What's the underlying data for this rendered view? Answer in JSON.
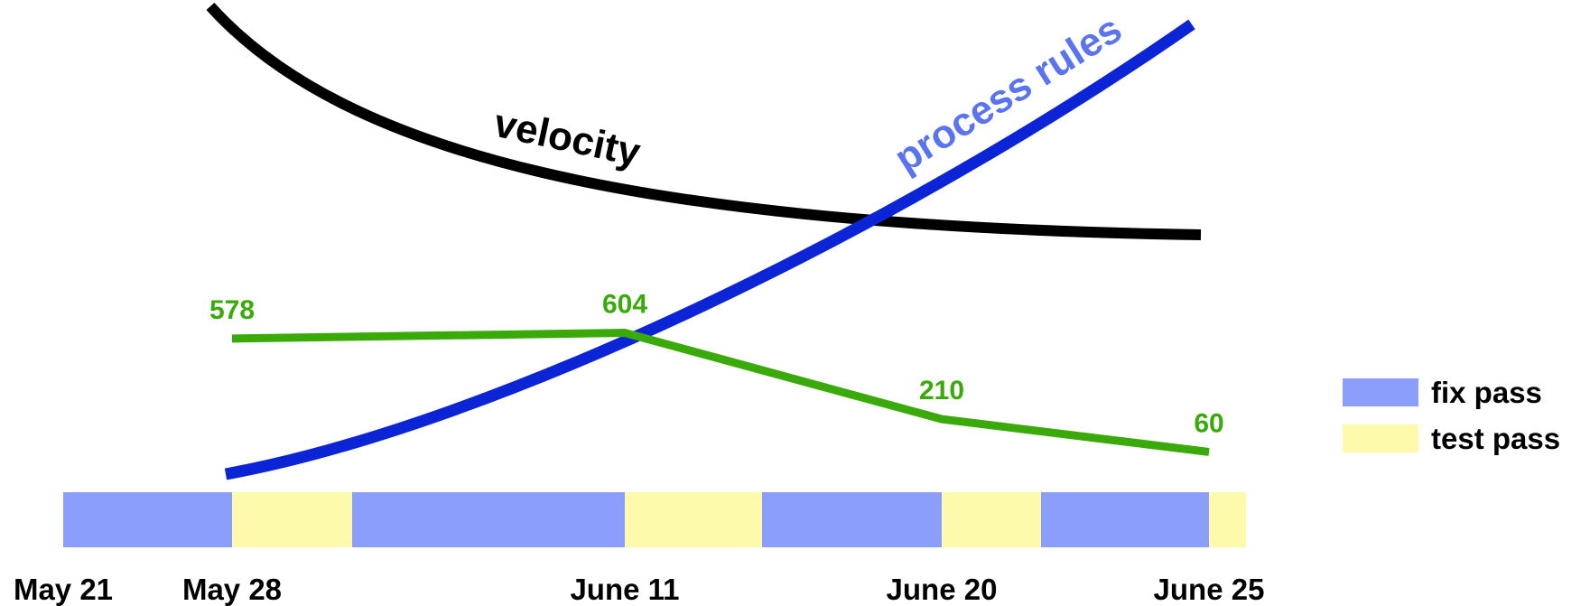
{
  "chart_data": {
    "type": "line",
    "x_axis": {
      "type": "date",
      "range": [
        "2021-05-21",
        "2021-06-25"
      ],
      "tick_labels": [
        "May 21",
        "May 28",
        "June 11",
        "June 20",
        "June 25"
      ],
      "tick_dates": [
        "2021-05-21",
        "2021-05-28",
        "2021-06-11",
        "2021-06-20",
        "2021-06-25"
      ]
    },
    "series": [
      {
        "name": "",
        "color": "#3aaa0a",
        "x": [
          "2021-05-28",
          "2021-06-11",
          "2021-06-20",
          "2021-06-25"
        ],
        "values": [
          578,
          604,
          210,
          60
        ],
        "data_labels": [
          "578",
          "604",
          "210",
          "60"
        ]
      },
      {
        "name": "velocity",
        "color": "#000000",
        "trend": "decreasing"
      },
      {
        "name": "process rules",
        "color": "#0b24d6",
        "trend": "increasing"
      }
    ],
    "phases": [
      {
        "kind": "fix pass",
        "start": "2021-05-21",
        "end": "2021-05-28"
      },
      {
        "kind": "test pass",
        "start": "2021-05-28",
        "end": "2021-06-01"
      },
      {
        "kind": "fix pass",
        "start": "2021-06-01",
        "end": "2021-06-11"
      },
      {
        "kind": "test pass",
        "start": "2021-06-11",
        "end": "2021-06-15"
      },
      {
        "kind": "fix pass",
        "start": "2021-06-15",
        "end": "2021-06-20"
      },
      {
        "kind": "test pass",
        "start": "2021-06-20",
        "end": "2021-06-23"
      },
      {
        "kind": "fix pass",
        "start": "2021-06-23",
        "end": "2021-06-25"
      },
      {
        "kind": "test pass",
        "start": "2021-06-25",
        "end": "2021-06-26"
      }
    ],
    "legend": {
      "placement": "right",
      "entries": [
        {
          "label": "fix pass",
          "color": "#8c9efb"
        },
        {
          "label": "test pass",
          "color": "#fdfbab"
        }
      ]
    },
    "grid": false,
    "title": "",
    "xlabel": "",
    "ylabel": ""
  }
}
